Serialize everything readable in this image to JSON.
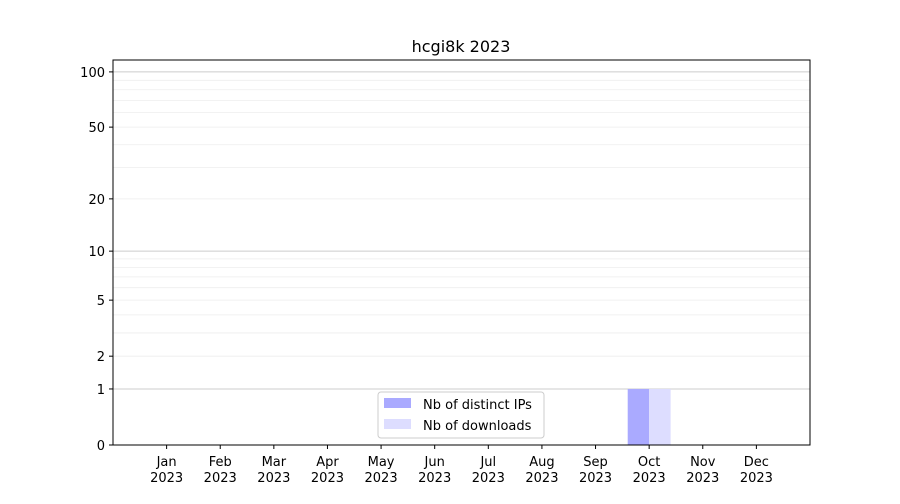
{
  "chart_data": {
    "type": "bar",
    "title": "hcgi8k 2023",
    "xlabel": "",
    "ylabel": "",
    "categories": [
      "Jan\n2023",
      "Feb\n2023",
      "Mar\n2023",
      "Apr\n2023",
      "May\n2023",
      "Jun\n2023",
      "Jul\n2023",
      "Aug\n2023",
      "Sep\n2023",
      "Oct\n2023",
      "Nov\n2023",
      "Dec\n2023"
    ],
    "series": [
      {
        "name": "Nb of distinct IPs",
        "color": "#aaaaff",
        "values": [
          0,
          0,
          0,
          0,
          0,
          0,
          0,
          0,
          0,
          1,
          0,
          0
        ]
      },
      {
        "name": "Nb of downloads",
        "color": "#ddddff",
        "values": [
          0,
          0,
          0,
          0,
          0,
          0,
          0,
          0,
          0,
          1,
          0,
          0
        ]
      }
    ],
    "y_scale": "log(1+y)",
    "ylim": [
      0,
      116
    ],
    "yticks": [
      0,
      1,
      2,
      5,
      10,
      20,
      50,
      100
    ],
    "grid": true,
    "legend": "lower-center"
  }
}
